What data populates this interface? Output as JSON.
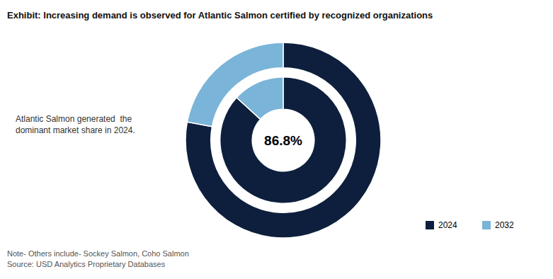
{
  "chart_data": {
    "type": "donut",
    "title": "Exhibit: Increasing demand is observed for Atlantic Salmon certified by recognized organizations",
    "center_text": "86.8%",
    "annotations": [
      "Atlantic Salmon generated  the\ndominant market share in 2024.",
      "Note- Others include- Sockey Salmon, Coho Salmon\nSource: USD Analytics Proprietary Databases"
    ],
    "categories": [
      "2024",
      "2032"
    ],
    "colors": [
      "#0d1f3c",
      "#7ab4d8"
    ],
    "series": [
      {
        "values": [
          78.0,
          22.0
        ]
      },
      {
        "values": [
          86.8,
          13.2
        ]
      }
    ],
    "legend": "lower right"
  }
}
